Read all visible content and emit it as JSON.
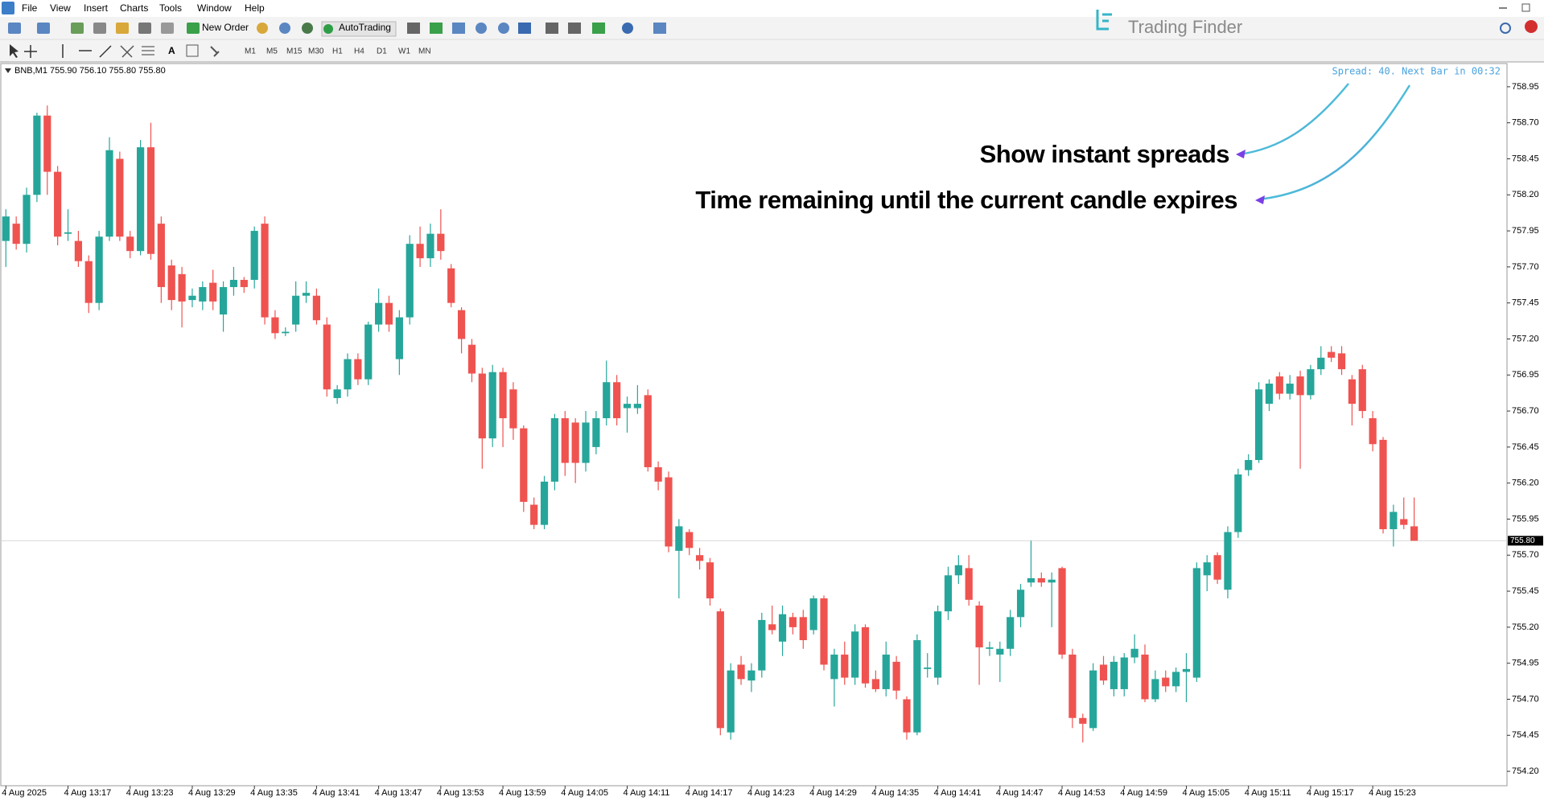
{
  "menu": [
    "File",
    "View",
    "Insert",
    "Charts",
    "Tools",
    "Window",
    "Help"
  ],
  "toolbar": {
    "new_order": "New Order",
    "auto_trading": "AutoTrading",
    "timeframes": [
      "M1",
      "M5",
      "M15",
      "M30",
      "H1",
      "H4",
      "D1",
      "W1",
      "MN"
    ]
  },
  "logo": "Trading Finder",
  "chart_data": {
    "type": "candlestick",
    "symbol_info": "BNB,M1 755.90 756.10 755.80 755.80",
    "indicator_text": "Spread: 40. Next Bar in 00:32",
    "annotations": [
      "Show instant spreads",
      "Time remaining until the current candle expires"
    ],
    "up_color": "#26a69a",
    "down_color": "#ef5350",
    "ylim": [
      754.1,
      759.1
    ],
    "yticks": [
      758.95,
      {
        "value": 758.7,
        "label": "758.70"
      },
      758.45,
      {
        "value": 758.2,
        "label": "758.20"
      },
      757.95,
      {
        "value": 757.7,
        "label": "757.70"
      },
      757.45,
      {
        "value": 757.2,
        "label": "757.20"
      },
      756.95,
      {
        "value": 756.7,
        "label": "756.70"
      },
      756.45,
      {
        "value": 756.2,
        "label": "756.20"
      },
      755.95,
      {
        "value": 755.7,
        "label": "755.70"
      },
      755.45,
      {
        "value": 755.2,
        "label": "755.20"
      },
      754.95,
      {
        "value": 754.7,
        "label": "754.70"
      },
      754.45,
      {
        "value": 754.2,
        "label": "754.20"
      }
    ],
    "bid_label": {
      "value": 755.8,
      "label": "755.80"
    },
    "xticks": [
      {
        "value": 0,
        "label": "4 Aug 2025"
      },
      {
        "value": 6,
        "label": "4 Aug 13:17"
      },
      {
        "value": 12,
        "label": "4 Aug 13:23"
      },
      {
        "value": 18,
        "label": "4 Aug 13:29"
      },
      {
        "value": 24,
        "label": "4 Aug 13:35"
      },
      {
        "value": 30,
        "label": "4 Aug 13:41"
      },
      {
        "value": 36,
        "label": "4 Aug 13:47"
      },
      {
        "value": 42,
        "label": "4 Aug 13:53"
      },
      {
        "value": 48,
        "label": "4 Aug 13:59"
      },
      {
        "value": 54,
        "label": "4 Aug 14:05"
      },
      {
        "value": 60,
        "label": "4 Aug 14:11"
      },
      {
        "value": 66,
        "label": "4 Aug 14:17"
      },
      {
        "value": 72,
        "label": "4 Aug 14:23"
      },
      {
        "value": 78,
        "label": "4 Aug 14:29"
      },
      {
        "value": 84,
        "label": "4 Aug 14:35"
      },
      {
        "value": 90,
        "label": "4 Aug 14:41"
      },
      {
        "value": 96,
        "label": "4 Aug 14:47"
      },
      {
        "value": 102,
        "label": "4 Aug 14:53"
      },
      {
        "value": 108,
        "label": "4 Aug 14:59"
      },
      {
        "value": 114,
        "label": "4 Aug 15:05"
      },
      {
        "value": 120,
        "label": "4 Aug 15:11"
      },
      {
        "value": 126,
        "label": "4 Aug 15:17"
      },
      {
        "value": 132,
        "label": "4 Aug 15:23"
      }
    ],
    "ohlc": [
      [
        757.88,
        758.1,
        757.7,
        758.05
      ],
      [
        758.0,
        758.05,
        757.82,
        757.86
      ],
      [
        757.86,
        758.25,
        757.8,
        758.2
      ],
      [
        758.2,
        758.77,
        758.15,
        758.75
      ],
      [
        758.75,
        758.82,
        758.2,
        758.36
      ],
      [
        758.36,
        758.4,
        757.85,
        757.91
      ],
      [
        757.93,
        758.1,
        757.88,
        757.94
      ],
      [
        757.88,
        757.95,
        757.7,
        757.74
      ],
      [
        757.74,
        757.78,
        757.38,
        757.45
      ],
      [
        757.45,
        757.95,
        757.4,
        757.91
      ],
      [
        757.91,
        758.6,
        757.88,
        758.51
      ],
      [
        758.45,
        758.5,
        757.88,
        757.91
      ],
      [
        757.91,
        757.95,
        757.76,
        757.81
      ],
      [
        757.81,
        758.58,
        757.78,
        758.53
      ],
      [
        758.53,
        758.7,
        757.75,
        757.79
      ],
      [
        758.0,
        758.05,
        757.45,
        757.56
      ],
      [
        757.71,
        757.75,
        757.4,
        757.47
      ],
      [
        757.65,
        757.7,
        757.28,
        757.46
      ],
      [
        757.47,
        757.55,
        757.42,
        757.5
      ],
      [
        757.46,
        757.6,
        757.4,
        757.56
      ],
      [
        757.59,
        757.68,
        757.4,
        757.46
      ],
      [
        757.37,
        757.6,
        757.25,
        757.56
      ],
      [
        757.56,
        757.7,
        757.5,
        757.61
      ],
      [
        757.61,
        757.63,
        757.52,
        757.56
      ],
      [
        757.61,
        757.98,
        757.55,
        757.95
      ],
      [
        758.0,
        758.05,
        757.3,
        757.35
      ],
      [
        757.35,
        757.4,
        757.2,
        757.24
      ],
      [
        757.24,
        757.28,
        757.22,
        757.25
      ],
      [
        757.3,
        757.6,
        757.25,
        757.5
      ],
      [
        757.5,
        757.6,
        757.45,
        757.52
      ],
      [
        757.5,
        757.55,
        757.3,
        757.33
      ],
      [
        757.3,
        757.35,
        756.8,
        756.85
      ],
      [
        756.79,
        756.88,
        756.75,
        756.85
      ],
      [
        756.85,
        757.1,
        756.8,
        757.06
      ],
      [
        757.06,
        757.1,
        756.88,
        756.92
      ],
      [
        756.92,
        757.32,
        756.88,
        757.3
      ],
      [
        757.3,
        757.55,
        757.25,
        757.45
      ],
      [
        757.45,
        757.5,
        757.25,
        757.3
      ],
      [
        757.06,
        757.4,
        756.95,
        757.35
      ],
      [
        757.35,
        757.92,
        757.3,
        757.86
      ],
      [
        757.86,
        757.98,
        757.7,
        757.76
      ],
      [
        757.76,
        758.0,
        757.7,
        757.93
      ],
      [
        757.93,
        758.1,
        757.75,
        757.81
      ],
      [
        757.69,
        757.72,
        757.42,
        757.45
      ],
      [
        757.4,
        757.42,
        757.1,
        757.2
      ],
      [
        757.16,
        757.2,
        756.9,
        756.96
      ],
      [
        756.96,
        757.0,
        756.3,
        756.51
      ],
      [
        756.51,
        757.02,
        756.45,
        756.97
      ],
      [
        756.97,
        757.0,
        756.45,
        756.65
      ],
      [
        756.85,
        756.9,
        756.5,
        756.58
      ],
      [
        756.58,
        756.6,
        756.0,
        756.07
      ],
      [
        756.05,
        756.1,
        755.88,
        755.91
      ],
      [
        755.91,
        756.25,
        755.88,
        756.21
      ],
      [
        756.21,
        756.68,
        756.15,
        756.65
      ],
      [
        756.65,
        756.7,
        756.25,
        756.34
      ],
      [
        756.62,
        756.65,
        756.2,
        756.34
      ],
      [
        756.34,
        756.7,
        756.28,
        756.62
      ],
      [
        756.45,
        756.7,
        756.4,
        756.65
      ],
      [
        756.65,
        757.05,
        756.6,
        756.9
      ],
      [
        756.9,
        756.95,
        756.6,
        756.65
      ],
      [
        756.72,
        756.8,
        756.55,
        756.75
      ],
      [
        756.72,
        756.88,
        756.68,
        756.75
      ],
      [
        756.81,
        756.85,
        756.28,
        756.31
      ],
      [
        756.31,
        756.35,
        756.15,
        756.21
      ],
      [
        756.24,
        756.28,
        755.72,
        755.76
      ],
      [
        755.73,
        755.95,
        755.4,
        755.9
      ],
      [
        755.86,
        755.88,
        755.7,
        755.75
      ],
      [
        755.7,
        755.75,
        755.6,
        755.66
      ],
      [
        755.65,
        755.68,
        755.35,
        755.4
      ],
      [
        755.31,
        755.33,
        754.45,
        754.5
      ],
      [
        754.47,
        754.95,
        754.42,
        754.9
      ],
      [
        754.94,
        755.0,
        754.8,
        754.84
      ],
      [
        754.83,
        754.95,
        754.75,
        754.9
      ],
      [
        754.9,
        755.3,
        754.85,
        755.25
      ],
      [
        755.22,
        755.35,
        755.15,
        755.18
      ],
      [
        755.1,
        755.35,
        755.0,
        755.29
      ],
      [
        755.27,
        755.3,
        755.15,
        755.2
      ],
      [
        755.27,
        755.32,
        755.05,
        755.11
      ],
      [
        755.18,
        755.42,
        755.15,
        755.4
      ],
      [
        755.4,
        755.42,
        754.9,
        754.94
      ],
      [
        754.84,
        755.05,
        754.65,
        755.01
      ],
      [
        755.01,
        755.1,
        754.8,
        754.85
      ],
      [
        754.85,
        755.22,
        754.8,
        755.17
      ],
      [
        755.2,
        755.22,
        754.78,
        754.81
      ],
      [
        754.84,
        754.9,
        754.75,
        754.77
      ],
      [
        754.77,
        755.1,
        754.72,
        755.01
      ],
      [
        754.96,
        755.0,
        754.7,
        754.76
      ],
      [
        754.7,
        754.72,
        754.42,
        754.47
      ],
      [
        754.47,
        755.15,
        754.45,
        755.11
      ],
      [
        754.91,
        755.02,
        754.85,
        754.92
      ],
      [
        754.85,
        755.35,
        754.8,
        755.31
      ],
      [
        755.31,
        755.62,
        755.25,
        755.56
      ],
      [
        755.56,
        755.7,
        755.5,
        755.63
      ],
      [
        755.61,
        755.7,
        755.35,
        755.39
      ],
      [
        755.35,
        755.38,
        754.8,
        755.06
      ],
      [
        755.05,
        755.1,
        755.0,
        755.06
      ],
      [
        755.01,
        755.1,
        754.82,
        755.05
      ],
      [
        755.05,
        755.32,
        755.0,
        755.27
      ],
      [
        755.27,
        755.5,
        755.2,
        755.46
      ],
      [
        755.51,
        755.8,
        755.48,
        755.54
      ],
      [
        755.54,
        755.58,
        755.48,
        755.51
      ],
      [
        755.51,
        755.58,
        755.2,
        755.53
      ],
      [
        755.61,
        755.62,
        754.98,
        755.01
      ],
      [
        755.01,
        755.05,
        754.5,
        754.57
      ],
      [
        754.57,
        754.6,
        754.4,
        754.53
      ],
      [
        754.5,
        754.95,
        754.48,
        754.9
      ],
      [
        754.94,
        755.0,
        754.8,
        754.83
      ],
      [
        754.77,
        755.0,
        754.72,
        754.96
      ],
      [
        754.77,
        755.02,
        754.72,
        754.99
      ],
      [
        754.99,
        755.15,
        754.95,
        755.05
      ],
      [
        755.01,
        755.08,
        754.68,
        754.7
      ],
      [
        754.7,
        754.9,
        754.68,
        754.84
      ],
      [
        754.85,
        754.9,
        754.75,
        754.79
      ],
      [
        754.79,
        754.92,
        754.75,
        754.89
      ],
      [
        754.89,
        755.02,
        754.68,
        754.91
      ],
      [
        754.85,
        755.65,
        754.82,
        755.61
      ],
      [
        755.56,
        755.7,
        755.45,
        755.65
      ],
      [
        755.7,
        755.72,
        755.5,
        755.53
      ],
      [
        755.46,
        755.9,
        755.4,
        755.86
      ],
      [
        755.86,
        756.3,
        755.82,
        756.26
      ],
      [
        756.29,
        756.4,
        756.25,
        756.36
      ],
      [
        756.36,
        756.9,
        756.34,
        756.85
      ],
      [
        756.75,
        756.92,
        756.7,
        756.89
      ],
      [
        756.94,
        756.97,
        756.78,
        756.82
      ],
      [
        756.82,
        756.95,
        756.78,
        756.89
      ],
      [
        756.94,
        756.98,
        756.3,
        756.81
      ],
      [
        756.81,
        757.02,
        756.78,
        756.99
      ],
      [
        756.99,
        757.15,
        756.95,
        757.07
      ],
      [
        757.11,
        757.15,
        757.04,
        757.07
      ],
      [
        757.1,
        757.15,
        756.95,
        756.99
      ],
      [
        756.92,
        756.95,
        756.6,
        756.75
      ],
      [
        756.99,
        757.02,
        756.65,
        756.7
      ],
      [
        756.65,
        756.7,
        756.42,
        756.47
      ],
      [
        756.5,
        756.52,
        755.85,
        755.88
      ],
      [
        755.88,
        756.05,
        755.76,
        756.0
      ],
      [
        755.95,
        756.1,
        755.88,
        755.91
      ],
      [
        755.9,
        756.1,
        755.8,
        755.8
      ]
    ]
  }
}
